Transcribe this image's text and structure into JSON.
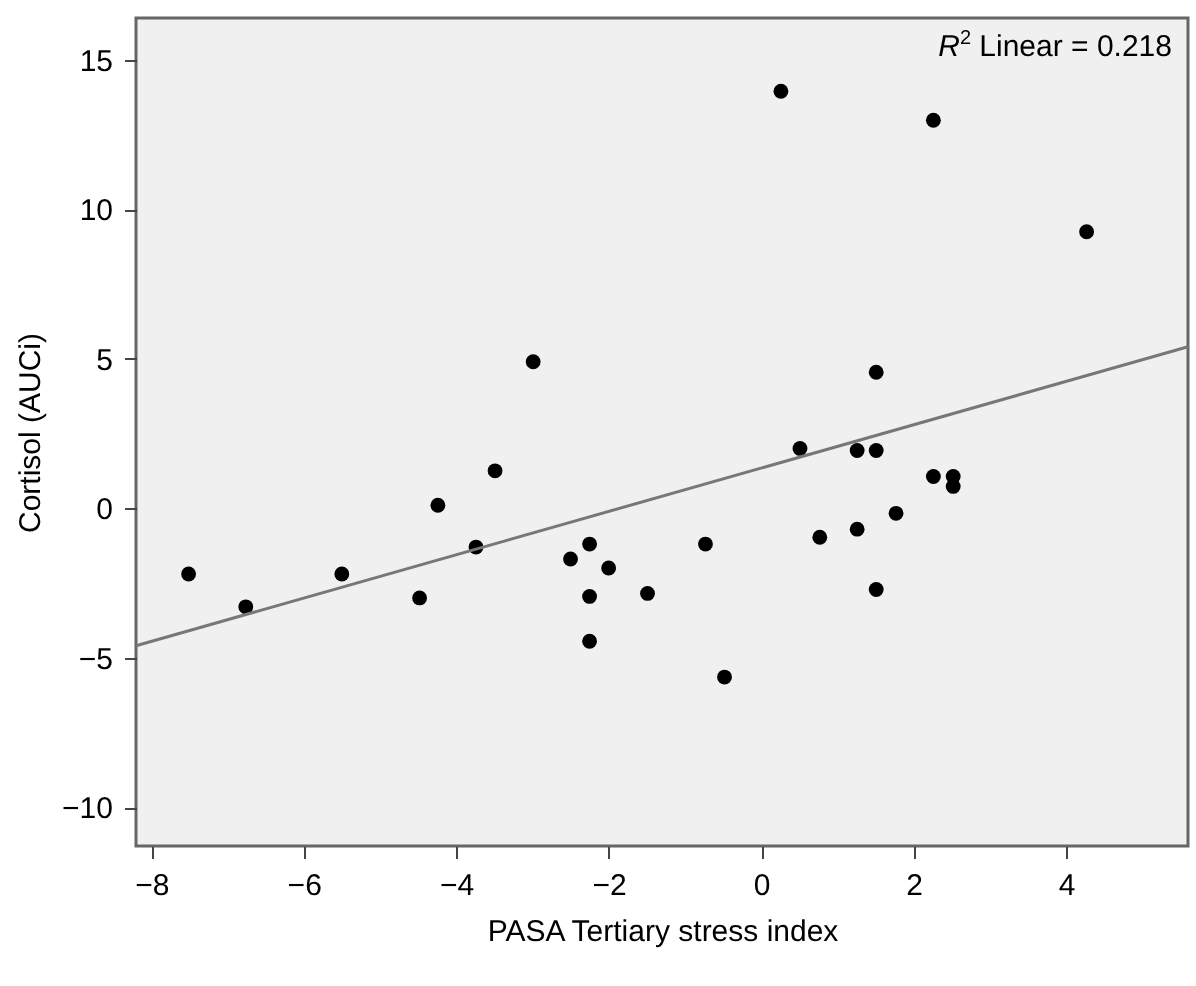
{
  "chart_data": {
    "type": "scatter",
    "xlabel": "PASA Tertiary stress index",
    "ylabel": "Cortisol (AUCi)",
    "annotations": [
      "$^{}$R$^{2}$ Linear = 0.218"
    ],
    "xlim": [
      -8.2,
      5.6
    ],
    "xticks": [
      -8,
      -6,
      -4,
      -2,
      0,
      2,
      4
    ],
    "ylim": [
      -11.3,
      16.4
    ],
    "yticks": [
      -10,
      -5,
      0,
      5,
      10,
      15
    ],
    "grid": false,
    "series": [
      {
        "marker": "circle",
        "color": "#000000",
        "x": [
          -7.51,
          -6.76,
          -5.5,
          -4.48,
          -4.24,
          -3.74,
          -3.49,
          -2.99,
          -2.5,
          -2.25,
          -2.25,
          -2.25,
          -2.0,
          -1.49,
          -0.73,
          -0.48,
          0.26,
          0.51,
          0.77,
          1.26,
          1.26,
          1.51,
          1.51,
          1.51,
          1.77,
          2.26,
          2.26,
          2.52,
          2.52,
          4.27
        ],
        "values": [
          -2.2,
          -3.3,
          -2.2,
          -3.0,
          0.1,
          -1.3,
          1.25,
          4.9,
          -1.7,
          -1.2,
          -2.95,
          -4.45,
          -2.0,
          -2.85,
          -1.2,
          -5.65,
          13.95,
          2.0,
          -0.97,
          1.93,
          -0.7,
          4.55,
          1.93,
          -2.72,
          -0.17,
          12.98,
          1.06,
          1.06,
          0.73,
          9.25
        ]
      },
      {
        "type": "line",
        "marker": "none",
        "color": "#777777",
        "x": [
          -8.2,
          5.6
        ],
        "values": [
          -4.6,
          5.4
        ]
      }
    ]
  }
}
